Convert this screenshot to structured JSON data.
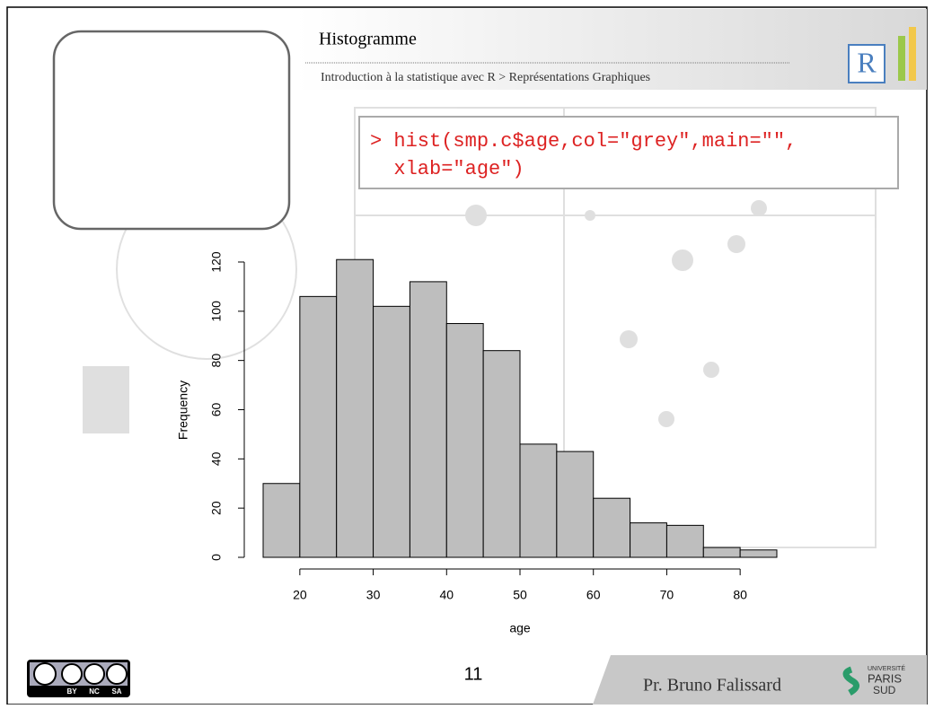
{
  "header": {
    "title": "Histogramme",
    "subtitle": "Introduction à la statistique avec R > Représentations Graphiques",
    "logo": "R"
  },
  "code": [
    "> hist(smp.c$age,col=\"grey\",main=\"\",",
    "  xlab=\"age\")"
  ],
  "footer": {
    "page": "11",
    "author": "Pr. Bruno Falissard",
    "license": [
      "BY",
      "NC",
      "SA"
    ],
    "university": [
      "UNIVERSITÉ",
      "PARIS",
      "SUD"
    ]
  },
  "chart_data": {
    "type": "histogram",
    "xlabel": "age",
    "ylabel": "Frequency",
    "color": "#bebebe",
    "bins": [
      15,
      20,
      25,
      30,
      35,
      40,
      45,
      50,
      55,
      60,
      65,
      70,
      75,
      80,
      85
    ],
    "values": [
      30,
      106,
      121,
      102,
      112,
      95,
      84,
      46,
      43,
      24,
      14,
      13,
      4,
      3
    ],
    "xlim": [
      15,
      85
    ],
    "xticks": [
      20,
      30,
      40,
      50,
      60,
      70,
      80
    ],
    "ylim": [
      0,
      124
    ],
    "yticks": [
      0,
      20,
      40,
      60,
      80,
      100,
      120
    ]
  }
}
